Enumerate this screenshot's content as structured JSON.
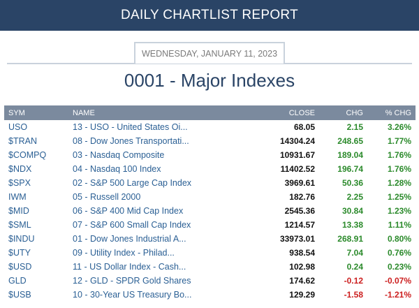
{
  "header": {
    "title": "DAILY CHARTLIST REPORT"
  },
  "report": {
    "date": "WEDNESDAY, JANUARY 11, 2023",
    "title": "0001 - Major Indexes"
  },
  "table": {
    "columns": [
      "SYM",
      "NAME",
      "CLOSE",
      "CHG",
      "% CHG"
    ],
    "rows": [
      {
        "sym": "USO",
        "name": "13 - USO - United States Oi...",
        "close": "68.05",
        "chg": "2.15",
        "pct": "3.26%"
      },
      {
        "sym": "$TRAN",
        "name": "08 - Dow Jones Transportati...",
        "close": "14304.24",
        "chg": "248.65",
        "pct": "1.77%"
      },
      {
        "sym": "$COMPQ",
        "name": "03 - Nasdaq Composite",
        "close": "10931.67",
        "chg": "189.04",
        "pct": "1.76%"
      },
      {
        "sym": "$NDX",
        "name": "04 - Nasdaq 100 Index",
        "close": "11402.52",
        "chg": "196.74",
        "pct": "1.76%"
      },
      {
        "sym": "$SPX",
        "name": "02 - S&P 500 Large Cap Index",
        "close": "3969.61",
        "chg": "50.36",
        "pct": "1.28%"
      },
      {
        "sym": "IWM",
        "name": "05 - Russell 2000",
        "close": "182.76",
        "chg": "2.25",
        "pct": "1.25%"
      },
      {
        "sym": "$MID",
        "name": "06 - S&P 400 Mid Cap Index",
        "close": "2545.36",
        "chg": "30.84",
        "pct": "1.23%"
      },
      {
        "sym": "$SML",
        "name": "07 - S&P 600 Small Cap Index",
        "close": "1214.57",
        "chg": "13.38",
        "pct": "1.11%"
      },
      {
        "sym": "$INDU",
        "name": "01 - Dow Jones Industrial A...",
        "close": "33973.01",
        "chg": "268.91",
        "pct": "0.80%"
      },
      {
        "sym": "$UTY",
        "name": "09 - Utility Index - Philad...",
        "close": "938.54",
        "chg": "7.04",
        "pct": "0.76%"
      },
      {
        "sym": "$USD",
        "name": "11 - US Dollar Index - Cash...",
        "close": "102.98",
        "chg": "0.24",
        "pct": "0.23%"
      },
      {
        "sym": "GLD",
        "name": "12 - GLD - SPDR Gold Shares",
        "close": "174.62",
        "chg": "-0.12",
        "pct": "-0.07%"
      },
      {
        "sym": "$USB",
        "name": "10 - 30-Year US Treasury Bo...",
        "close": "129.29",
        "chg": "-1.58",
        "pct": "-1.21%"
      }
    ]
  },
  "colors": {
    "header_bg": "#2a4466",
    "table_header_bg": "#7b8a9e",
    "link": "#2a5f94",
    "positive": "#2b8a2b",
    "negative": "#cc1f1f"
  }
}
